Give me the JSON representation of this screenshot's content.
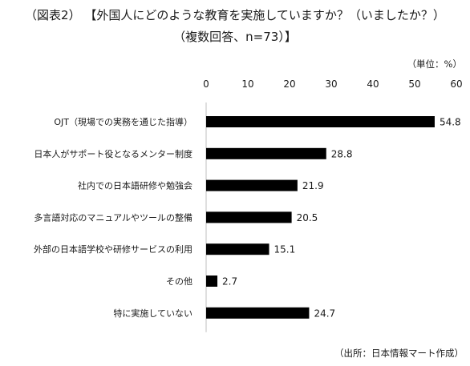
{
  "title": {
    "figure_label": "（図表2）",
    "question": "【外国人にどのような教育を実施していますか？（いましたか？）",
    "note": "（複数回答、n=73）】"
  },
  "unit_label": "（単位：%）",
  "source": "（出所：日本情報マート作成）",
  "chart_data": {
    "type": "bar",
    "orientation": "horizontal",
    "categories": [
      "OJT（現場での実務を通じた指導）",
      "日本人がサポート役となるメンター制度",
      "社内での日本語研修や勉強会",
      "多言語対応のマニュアルやツールの整備",
      "外部の日本語学校や研修サービスの利用",
      "その他",
      "特に実施していない"
    ],
    "values": [
      54.8,
      28.8,
      21.9,
      20.5,
      15.1,
      2.7,
      24.7
    ],
    "value_labels": [
      "54.8",
      "28.8",
      "21.9",
      "20.5",
      "15.1",
      "2.7",
      "24.7"
    ],
    "xlim": [
      0,
      60
    ],
    "xticks": [
      0,
      10,
      20,
      30,
      40,
      50,
      60
    ],
    "tick_labels": [
      "0",
      "10",
      "20",
      "30",
      "40",
      "50",
      "60"
    ],
    "bar_color": "#000000",
    "grid": false,
    "axis_position": "top"
  }
}
